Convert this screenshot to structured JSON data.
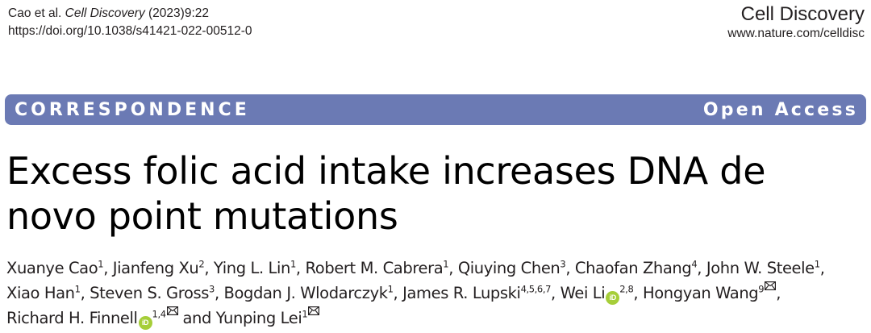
{
  "header": {
    "citation_authors": "Cao et al. ",
    "journal": "Cell Discovery",
    "citation_rest": " (2023)9:22",
    "doi": "https://doi.org/10.1038/s41421-022-00512-0",
    "brand_name": "Cell Discovery",
    "brand_url": "www.nature.com/celldisc"
  },
  "banner": {
    "type": "CORRESPONDENCE",
    "access": "Open Access",
    "color": "#6b7ab4"
  },
  "title": "Excess folic acid intake increases DNA de novo point mutations",
  "authors": [
    {
      "name": "Xuanye Cao",
      "sup": "1"
    },
    {
      "name": "Jianfeng Xu",
      "sup": "2"
    },
    {
      "name": "Ying L. Lin",
      "sup": "1"
    },
    {
      "name": "Robert M. Cabrera",
      "sup": "1"
    },
    {
      "name": "Qiuying Chen",
      "sup": "3"
    },
    {
      "name": "Chaofan Zhang",
      "sup": "4"
    },
    {
      "name": "John W. Steele",
      "sup": "1"
    },
    {
      "name": "Xiao Han",
      "sup": "1"
    },
    {
      "name": "Steven S. Gross",
      "sup": "3"
    },
    {
      "name": "Bogdan J. Wlodarczyk",
      "sup": "1"
    },
    {
      "name": "James R. Lupski",
      "sup": "4,5,6,7"
    },
    {
      "name": "Wei Li",
      "sup": "2,8",
      "orcid": true
    },
    {
      "name": "Hongyan Wang",
      "sup": "9",
      "corresponding": true
    },
    {
      "name": "Richard H. Finnell",
      "sup": "1,4",
      "orcid": true,
      "corresponding": true
    },
    {
      "name": "Yunping Lei",
      "sup": "1",
      "corresponding": true
    }
  ],
  "author_conjunction": "and",
  "icons": {
    "orcid": "orcid-icon",
    "mail": "envelope-icon"
  },
  "orcid_glyph": "iD",
  "orcid_color": "#a6ce39"
}
